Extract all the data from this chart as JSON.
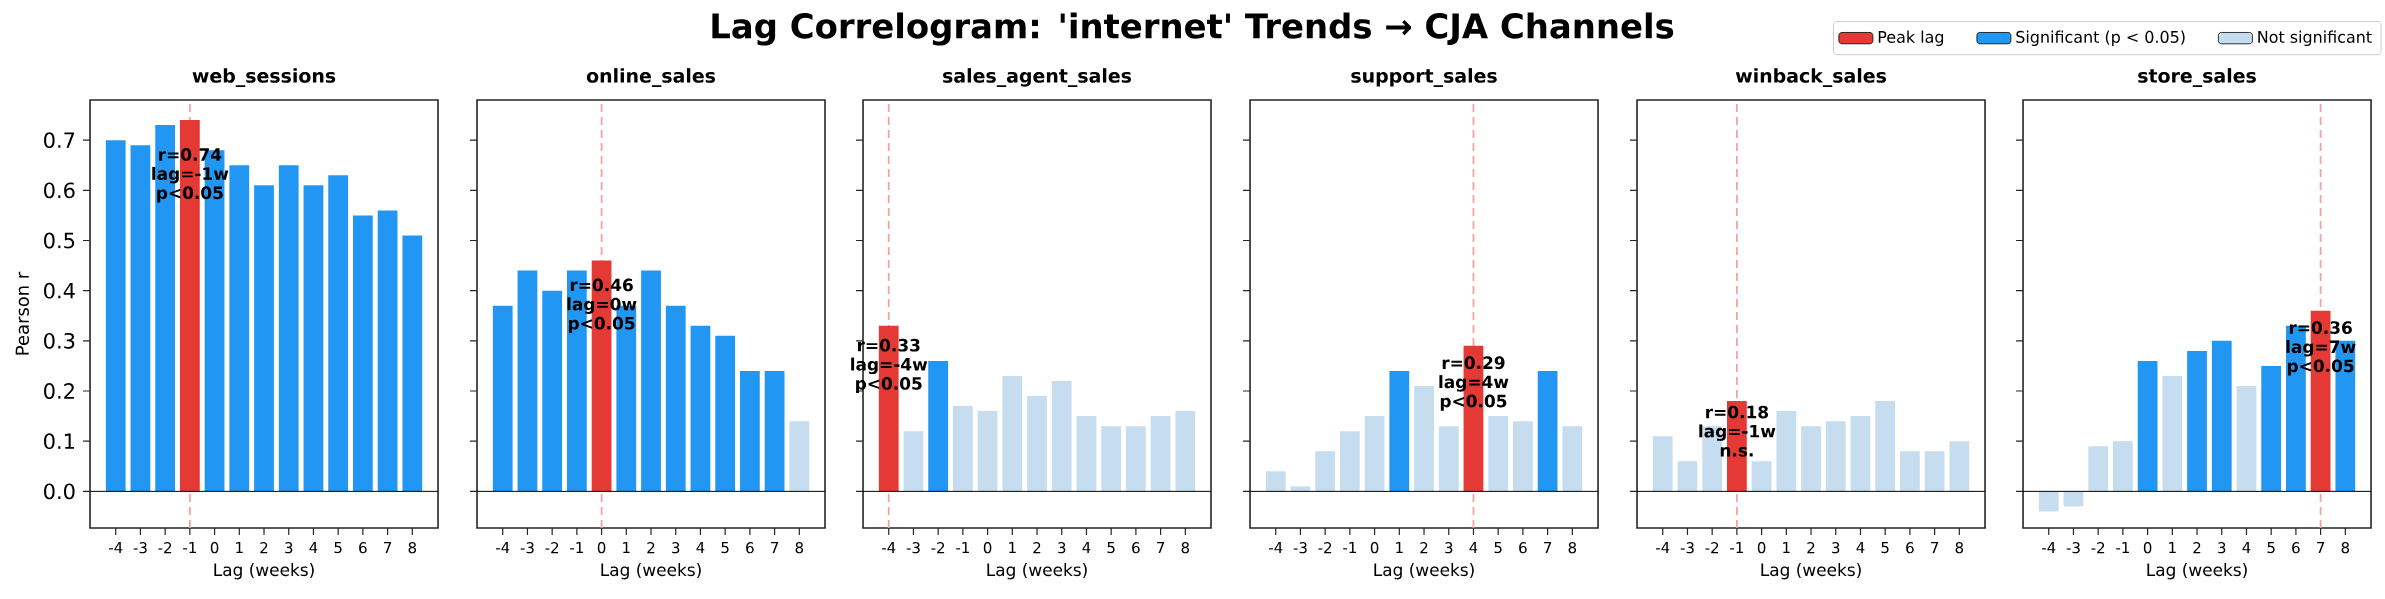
{
  "chart_data": [
    {
      "type": "other",
      "title": "Lag Correlogram: 'internet' Trends → CJA Channels"
    },
    {
      "type": "bar",
      "title": "web_sessions",
      "xlabel": "Lag (weeks)",
      "ylabel": "Pearson r",
      "categories": [
        "-4",
        "-3",
        "-2",
        "-1",
        "0",
        "1",
        "2",
        "3",
        "4",
        "5",
        "6",
        "7",
        "8"
      ],
      "series": [
        {
          "color": "#e53935",
          "values": [
            null,
            null,
            null,
            0.74,
            null,
            null,
            null,
            null,
            null,
            null,
            null,
            null,
            null
          ]
        },
        {
          "color": "#2196f3",
          "values": [
            0.7,
            0.69,
            0.73,
            null,
            0.68,
            0.65,
            0.61,
            0.65,
            0.61,
            0.63,
            0.55,
            0.56,
            0.51
          ]
        }
      ],
      "ylim": [
        -0.073,
        0.78
      ],
      "yticks": [
        {
          "value": 0,
          "label": "0.0"
        },
        0.1,
        0.2,
        0.3,
        0.4,
        0.5,
        0.6,
        0.7
      ],
      "ref_lines": [
        {
          "axis": "x",
          "value": "-1",
          "color": "#f4a3a3",
          "line_style": "dashed"
        },
        {
          "axis": "y",
          "value": 0,
          "color": "#000000",
          "line_style": "solid"
        }
      ],
      "annotations": [
        {
          "text": "r=0.74 lag=-1w p<0.05",
          "x": "-1",
          "y": 0.63
        }
      ]
    },
    {
      "type": "bar",
      "title": "online_sales",
      "xlabel": "Lag (weeks)",
      "categories": [
        "-4",
        "-3",
        "-2",
        "-1",
        "0",
        "1",
        "2",
        "3",
        "4",
        "5",
        "6",
        "7",
        "8"
      ],
      "series": [
        {
          "color": "#e53935",
          "values": [
            null,
            null,
            null,
            null,
            0.46,
            null,
            null,
            null,
            null,
            null,
            null,
            null,
            null
          ]
        },
        {
          "color": "#2196f3",
          "values": [
            0.37,
            0.44,
            0.4,
            0.44,
            null,
            0.37,
            0.44,
            0.37,
            0.33,
            0.31,
            0.24,
            0.24,
            null
          ]
        },
        {
          "color": "#c6dcef",
          "values": [
            null,
            null,
            null,
            null,
            null,
            null,
            null,
            null,
            null,
            null,
            null,
            null,
            0.14
          ]
        }
      ],
      "ylim": [
        -0.073,
        0.78
      ],
      "yticks": [
        0,
        0.1,
        0.2,
        0.3,
        0.4,
        0.5,
        0.6,
        0.7
      ],
      "tick_labels": "x",
      "ref_lines": [
        {
          "axis": "x",
          "value": "0",
          "color": "#f4a3a3",
          "line_style": "dashed"
        },
        {
          "axis": "y",
          "value": 0,
          "color": "#000000",
          "line_style": "solid"
        }
      ],
      "annotations": [
        {
          "text": "r=0.46 lag=0w p<0.05",
          "x": "0",
          "y": 0.37
        }
      ]
    },
    {
      "type": "bar",
      "title": "sales_agent_sales",
      "xlabel": "Lag (weeks)",
      "categories": [
        "-4",
        "-3",
        "-2",
        "-1",
        "0",
        "1",
        "2",
        "3",
        "4",
        "5",
        "6",
        "7",
        "8"
      ],
      "series": [
        {
          "color": "#e53935",
          "values": [
            0.33,
            null,
            null,
            null,
            null,
            null,
            null,
            null,
            null,
            null,
            null,
            null,
            null
          ]
        },
        {
          "color": "#2196f3",
          "values": [
            null,
            null,
            0.26,
            null,
            null,
            null,
            null,
            null,
            null,
            null,
            null,
            null,
            null
          ]
        },
        {
          "color": "#c6dcef",
          "values": [
            null,
            0.12,
            null,
            0.17,
            0.16,
            0.23,
            0.19,
            0.22,
            0.15,
            0.13,
            0.13,
            0.15,
            0.16
          ]
        }
      ],
      "ylim": [
        -0.073,
        0.78
      ],
      "yticks": [
        0,
        0.1,
        0.2,
        0.3,
        0.4,
        0.5,
        0.6,
        0.7
      ],
      "tick_labels": "x",
      "ref_lines": [
        {
          "axis": "x",
          "value": "-4",
          "color": "#f4a3a3",
          "line_style": "dashed"
        },
        {
          "axis": "y",
          "value": 0,
          "color": "#000000",
          "line_style": "solid"
        }
      ],
      "annotations": [
        {
          "text": "r=0.33 lag=-4w p<0.05",
          "x": "-4",
          "y": 0.25
        }
      ]
    },
    {
      "type": "bar",
      "title": "support_sales",
      "xlabel": "Lag (weeks)",
      "categories": [
        "-4",
        "-3",
        "-2",
        "-1",
        "0",
        "1",
        "2",
        "3",
        "4",
        "5",
        "6",
        "7",
        "8"
      ],
      "series": [
        {
          "color": "#e53935",
          "values": [
            null,
            null,
            null,
            null,
            null,
            null,
            null,
            null,
            0.29,
            null,
            null,
            null,
            null
          ]
        },
        {
          "color": "#2196f3",
          "values": [
            null,
            null,
            null,
            null,
            null,
            0.24,
            null,
            null,
            null,
            null,
            null,
            0.24,
            null
          ]
        },
        {
          "color": "#c6dcef",
          "values": [
            0.04,
            0.01,
            0.08,
            0.12,
            0.15,
            null,
            0.21,
            0.13,
            null,
            0.15,
            0.14,
            null,
            0.13
          ]
        }
      ],
      "ylim": [
        -0.073,
        0.78
      ],
      "yticks": [
        0,
        0.1,
        0.2,
        0.3,
        0.4,
        0.5,
        0.6,
        0.7
      ],
      "tick_labels": "x",
      "ref_lines": [
        {
          "axis": "x",
          "value": "4",
          "color": "#f4a3a3",
          "line_style": "dashed"
        },
        {
          "axis": "y",
          "value": 0,
          "color": "#000000",
          "line_style": "solid"
        }
      ],
      "annotations": [
        {
          "text": "r=0.29 lag=4w p<0.05",
          "x": "4",
          "y": 0.215
        }
      ]
    },
    {
      "type": "bar",
      "title": "winback_sales",
      "xlabel": "Lag (weeks)",
      "categories": [
        "-4",
        "-3",
        "-2",
        "-1",
        "0",
        "1",
        "2",
        "3",
        "4",
        "5",
        "6",
        "7",
        "8"
      ],
      "series": [
        {
          "color": "#e53935",
          "values": [
            null,
            null,
            null,
            0.18,
            null,
            null,
            null,
            null,
            null,
            null,
            null,
            null,
            null
          ]
        },
        {
          "color": "#c6dcef",
          "values": [
            0.11,
            0.06,
            0.13,
            null,
            0.06,
            0.16,
            0.13,
            0.14,
            0.15,
            0.18,
            0.08,
            0.08,
            0.1
          ]
        }
      ],
      "ylim": [
        -0.073,
        0.78
      ],
      "yticks": [
        0,
        0.1,
        0.2,
        0.3,
        0.4,
        0.5,
        0.6,
        0.7
      ],
      "tick_labels": "x",
      "ref_lines": [
        {
          "axis": "x",
          "value": "-1",
          "color": "#f4a3a3",
          "line_style": "dashed"
        },
        {
          "axis": "y",
          "value": 0,
          "color": "#000000",
          "line_style": "solid"
        }
      ],
      "annotations": [
        {
          "text": "r=0.18 lag=-1w n.s.",
          "x": "-1",
          "y": 0.12
        }
      ]
    },
    {
      "type": "bar",
      "title": "store_sales",
      "xlabel": "Lag (weeks)",
      "categories": [
        "-4",
        "-3",
        "-2",
        "-1",
        "0",
        "1",
        "2",
        "3",
        "4",
        "5",
        "6",
        "7",
        "8"
      ],
      "series": [
        {
          "name": "Peak lag",
          "color": "#e53935",
          "values": [
            null,
            null,
            null,
            null,
            null,
            null,
            null,
            null,
            null,
            null,
            null,
            0.36,
            null
          ]
        },
        {
          "name": "Significant (p < 0.05)",
          "color": "#2196f3",
          "values": [
            null,
            null,
            null,
            null,
            0.26,
            null,
            0.28,
            0.3,
            null,
            0.25,
            0.33,
            null,
            0.3
          ]
        },
        {
          "name": "Not significant",
          "color": "#c6dcef",
          "values": [
            -0.04,
            -0.03,
            0.09,
            0.1,
            null,
            0.23,
            null,
            null,
            0.21,
            null,
            null,
            null,
            null
          ]
        }
      ],
      "ylim": [
        -0.073,
        0.78
      ],
      "yticks": [
        0,
        0.1,
        0.2,
        0.3,
        0.4,
        0.5,
        0.6,
        0.7
      ],
      "tick_labels": "x",
      "legend": "top",
      "ref_lines": [
        {
          "axis": "x",
          "value": "7",
          "color": "#f4a3a3",
          "line_style": "dashed"
        },
        {
          "axis": "y",
          "value": 0,
          "color": "#000000",
          "line_style": "solid"
        }
      ],
      "annotations": [
        {
          "text": "r=0.36 lag=7w p<0.05",
          "x": "7",
          "y": 0.285
        }
      ]
    }
  ]
}
